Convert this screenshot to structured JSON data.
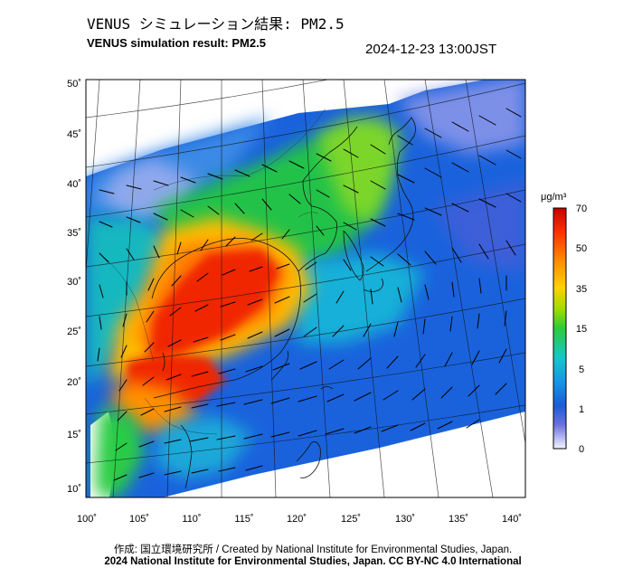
{
  "header": {
    "title_jp": "VENUS シミュレーション結果: PM2.5",
    "title_en": "VENUS simulation result: PM2.5",
    "timestamp": "2024-12-23 13:00JST"
  },
  "map": {
    "lat_labels": [
      "50˚",
      "45˚",
      "40˚",
      "35˚",
      "30˚",
      "25˚",
      "20˚",
      "15˚",
      "10˚"
    ],
    "lon_labels": [
      "100˚",
      "105˚",
      "110˚",
      "115˚",
      "120˚",
      "125˚",
      "130˚",
      "135˚",
      "140˚"
    ],
    "lat_range": [
      9,
      51
    ],
    "lon_range": [
      100,
      141
    ],
    "colorbar": {
      "unit": "μg/m³",
      "ticks": [
        "70",
        "50",
        "35",
        "15",
        "5",
        "1",
        "0"
      ],
      "colors": [
        "#ff0000",
        "#ff6a00",
        "#ffc800",
        "#9bdc00",
        "#2acc3c",
        "#16c8b4",
        "#1296e6",
        "#1a5ad8",
        "#4450d6",
        "#8c8ce8",
        "#f0f0ff"
      ]
    }
  },
  "footer": {
    "credit_jp": "作成: 国立環境研究所 / Created by National Institute for Environmental Studies, Japan.",
    "copyright": "2024 National Institute for Environmental Studies, Japan. CC BY-NC 4.0 International"
  }
}
